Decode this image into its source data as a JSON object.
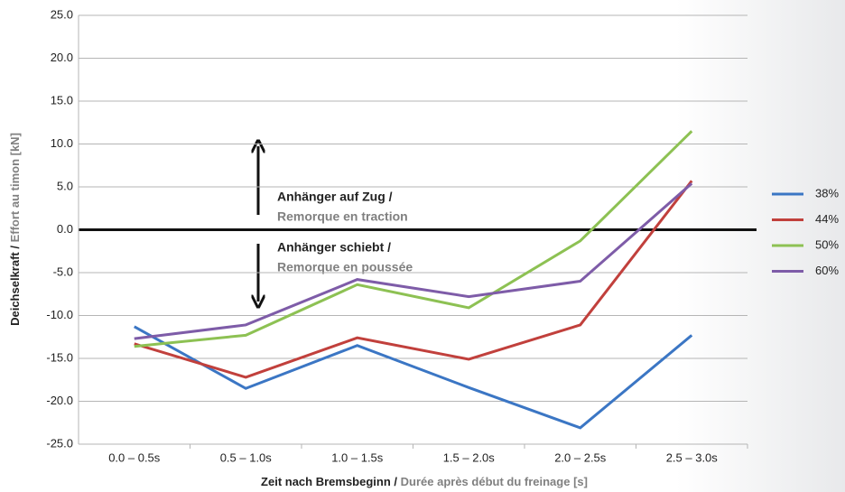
{
  "chart_data": {
    "type": "line",
    "y_label_de": "Deichselkraft /",
    "y_label_fr": "Effort au timon [kN]",
    "x_label_de": "Zeit nach Bremsbeginn /",
    "x_label_fr": "Durée après début du freinage [s]",
    "annotations": [
      "Anhänger auf Zug /",
      "Remorque en traction",
      "Anhänger schiebt /",
      "Remorque en poussée"
    ],
    "categories": [
      "0.0 – 0.5s",
      "0.5 – 1.0s",
      "1.0 – 1.5s",
      "1.5 – 2.0s",
      "2.0 – 2.5s",
      "2.5 – 3.0s"
    ],
    "series": [
      {
        "name": "38%",
        "color": "#3b76c4",
        "values": [
          -11.3,
          -18.5,
          -13.5,
          -18.4,
          -23.1,
          -12.3
        ]
      },
      {
        "name": "44%",
        "color": "#c1403c",
        "values": [
          -13.3,
          -17.2,
          -12.6,
          -15.1,
          -11.1,
          5.7
        ]
      },
      {
        "name": "50%",
        "color": "#8dc153",
        "values": [
          -13.6,
          -12.3,
          -6.4,
          -9.1,
          -1.3,
          11.5
        ]
      },
      {
        "name": "60%",
        "color": "#7e5ca8",
        "values": [
          -12.7,
          -11.1,
          -5.8,
          -7.8,
          -6.0,
          5.4
        ]
      }
    ],
    "ylim": [
      -25,
      25
    ],
    "yticks": [
      {
        "value": -25,
        "label": "-25.0"
      },
      {
        "value": -20,
        "label": "-20.0"
      },
      {
        "value": -15,
        "label": "-15.0"
      },
      {
        "value": -10,
        "label": "-10.0"
      },
      {
        "value": -5,
        "label": "-5.0"
      },
      {
        "value": 0,
        "label": "0.0"
      },
      {
        "value": 5,
        "label": "5.0"
      },
      {
        "value": 10,
        "label": "10.0"
      },
      {
        "value": 15,
        "label": "15.0"
      },
      {
        "value": 20,
        "label": "20.0"
      },
      {
        "value": 25,
        "label": "25.0"
      }
    ],
    "grid": true,
    "legend": "right"
  }
}
